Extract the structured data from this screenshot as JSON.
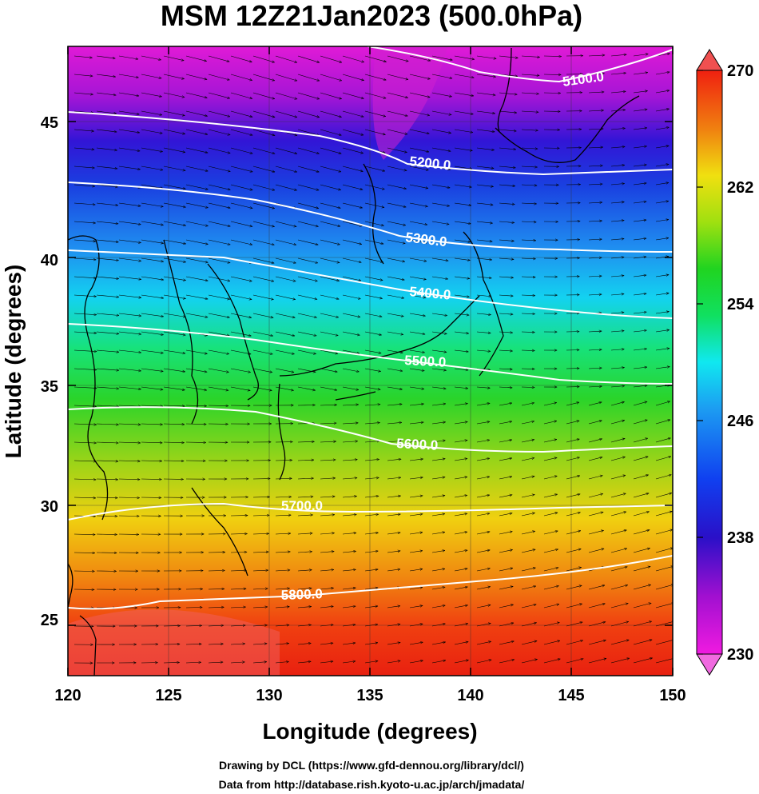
{
  "title": "MSM 12Z21Jan2023 (500.0hPa)",
  "xlabel": "Longitude (degrees)",
  "ylabel": "Latitude  (degrees)",
  "x_ticks": [
    "120",
    "125",
    "130",
    "135",
    "140",
    "145",
    "150"
  ],
  "y_ticks": [
    "25",
    "30",
    "35",
    "40",
    "45"
  ],
  "colorbar": {
    "ticks": [
      "270",
      "262",
      "254",
      "246",
      "238",
      "230"
    ]
  },
  "contours": [
    {
      "label": "5100.0"
    },
    {
      "label": "5200.0"
    },
    {
      "label": "5300.0"
    },
    {
      "label": "5400.0"
    },
    {
      "label": "5500.0"
    },
    {
      "label": "5600.0"
    },
    {
      "label": "5700.0"
    },
    {
      "label": "5800.0"
    }
  ],
  "credits": [
    "Drawing by DCL (https://www.gfd-dennou.org/library/dcl/)",
    "Data from http://database.rish.kyoto-u.ac.jp/arch/jmadata/"
  ]
}
